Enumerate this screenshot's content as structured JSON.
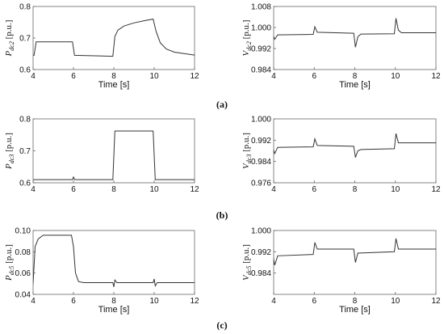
{
  "chart_data": [
    {
      "type": "line",
      "panel": "a-left",
      "ylabel_sym": "P",
      "ylabel_sub": "dc2",
      "ylabel_unit": " [p.u.]",
      "xlabel": "Time [s]",
      "xlim": [
        4,
        12
      ],
      "ylim": [
        0.6,
        0.8
      ],
      "xticks": [
        "4",
        "6",
        "8",
        "10",
        "12"
      ],
      "yticks": [
        "0.6",
        "0.7",
        "0.8"
      ],
      "series": [
        {
          "points": [
            [
              3.8,
              0.645
            ],
            [
              4.05,
              0.645
            ],
            [
              4.15,
              0.688
            ],
            [
              5.95,
              0.688
            ],
            [
              6.05,
              0.645
            ],
            [
              7.95,
              0.642
            ],
            [
              8.05,
              0.705
            ],
            [
              8.2,
              0.725
            ],
            [
              8.5,
              0.738
            ],
            [
              9.0,
              0.748
            ],
            [
              9.5,
              0.755
            ],
            [
              9.95,
              0.76
            ],
            [
              10.1,
              0.72
            ],
            [
              10.3,
              0.685
            ],
            [
              10.6,
              0.665
            ],
            [
              11.0,
              0.655
            ],
            [
              12,
              0.646
            ]
          ]
        }
      ]
    },
    {
      "type": "line",
      "panel": "a-right",
      "ylabel_sym": "V",
      "ylabel_sub": "dc2",
      "ylabel_unit": " [p.u.]",
      "xlabel": "Time [s]",
      "xlim": [
        4,
        12
      ],
      "ylim": [
        0.984,
        1.008
      ],
      "xticks": [
        "4",
        "6",
        "8",
        "10",
        "12"
      ],
      "yticks": [
        "0.984",
        "0.992",
        "1.000",
        "1.008"
      ],
      "series": [
        {
          "points": [
            [
              3.8,
              0.9975
            ],
            [
              3.95,
              0.9975
            ],
            [
              4.05,
              0.9955
            ],
            [
              4.2,
              0.9972
            ],
            [
              5.95,
              0.9974
            ],
            [
              6.03,
              1.0003
            ],
            [
              6.15,
              0.9982
            ],
            [
              7.95,
              0.9978
            ],
            [
              8.03,
              0.9925
            ],
            [
              8.15,
              0.9965
            ],
            [
              8.3,
              0.9975
            ],
            [
              9.95,
              0.9976
            ],
            [
              10.03,
              1.0035
            ],
            [
              10.15,
              0.999
            ],
            [
              10.3,
              0.998
            ],
            [
              12,
              0.998
            ]
          ]
        }
      ]
    },
    {
      "type": "line",
      "panel": "b-left",
      "ylabel_sym": "P",
      "ylabel_sub": "dc3",
      "ylabel_unit": " [p.u.]",
      "xlabel": "",
      "xlim": [
        4,
        12
      ],
      "ylim": [
        0.6,
        0.8
      ],
      "xticks": [
        "4",
        "6",
        "8",
        "10",
        "12"
      ],
      "yticks": [
        "0.6",
        "0.7",
        "0.8"
      ],
      "series": [
        {
          "points": [
            [
              3.8,
              0.61
            ],
            [
              5.95,
              0.61
            ],
            [
              6.0,
              0.618
            ],
            [
              6.05,
              0.61
            ],
            [
              7.95,
              0.61
            ],
            [
              8.05,
              0.762
            ],
            [
              9.95,
              0.762
            ],
            [
              10.05,
              0.61
            ],
            [
              12,
              0.61
            ]
          ]
        }
      ]
    },
    {
      "type": "line",
      "panel": "b-right",
      "ylabel_sym": "V",
      "ylabel_sub": "dc3",
      "ylabel_unit": " [p.u.]",
      "xlabel": "",
      "xlim": [
        4,
        12
      ],
      "ylim": [
        0.976,
        1.0
      ],
      "xticks": [
        "4",
        "6",
        "8",
        "10",
        "12"
      ],
      "yticks": [
        "0.976",
        "0.984",
        "0.992",
        "1.000"
      ],
      "series": [
        {
          "points": [
            [
              3.8,
              0.9895
            ],
            [
              3.95,
              0.9895
            ],
            [
              4.05,
              0.987
            ],
            [
              4.2,
              0.9893
            ],
            [
              5.95,
              0.9895
            ],
            [
              6.03,
              0.9925
            ],
            [
              6.15,
              0.99
            ],
            [
              7.95,
              0.9897
            ],
            [
              8.03,
              0.9855
            ],
            [
              8.15,
              0.988
            ],
            [
              8.3,
              0.9885
            ],
            [
              9.95,
              0.9888
            ],
            [
              10.03,
              0.9945
            ],
            [
              10.15,
              0.991
            ],
            [
              12,
              0.991
            ]
          ]
        }
      ]
    },
    {
      "type": "line",
      "panel": "c-left",
      "ylabel_sym": "P",
      "ylabel_sub": "dc5",
      "ylabel_unit": " [p.u.]",
      "xlabel": "Time [s]",
      "xlim": [
        4,
        12
      ],
      "ylim": [
        0.04,
        0.1
      ],
      "xticks": [
        "4",
        "6",
        "8",
        "10",
        "12"
      ],
      "yticks": [
        "0.04",
        "0.06",
        "0.08",
        "0.10"
      ],
      "series": [
        {
          "points": [
            [
              3.8,
              0.05
            ],
            [
              4.0,
              0.05
            ],
            [
              4.1,
              0.085
            ],
            [
              4.25,
              0.092
            ],
            [
              4.5,
              0.0955
            ],
            [
              5.9,
              0.0955
            ],
            [
              6.0,
              0.085
            ],
            [
              6.1,
              0.06
            ],
            [
              6.25,
              0.052
            ],
            [
              6.5,
              0.051
            ],
            [
              7.95,
              0.051
            ],
            [
              8.0,
              0.047
            ],
            [
              8.05,
              0.0535
            ],
            [
              8.15,
              0.051
            ],
            [
              9.95,
              0.051
            ],
            [
              10.0,
              0.0545
            ],
            [
              10.05,
              0.048
            ],
            [
              10.15,
              0.051
            ],
            [
              12,
              0.051
            ]
          ]
        }
      ]
    },
    {
      "type": "line",
      "panel": "c-right",
      "ylabel_sym": "V",
      "ylabel_sub": "dc5",
      "ylabel_unit": " [p.u.]",
      "xlabel": "Time [s]",
      "xlim": [
        4,
        12
      ],
      "ylim": [
        0.976,
        1.0
      ],
      "xticks": [
        "4",
        "6",
        "8",
        "10",
        "12"
      ],
      "yticks": [
        "0.984",
        "0.992",
        "1.000"
      ],
      "series": [
        {
          "points": [
            [
              3.8,
              0.9915
            ],
            [
              3.95,
              0.9915
            ],
            [
              4.05,
              0.987
            ],
            [
              4.2,
              0.9905
            ],
            [
              5.95,
              0.991
            ],
            [
              6.03,
              0.9955
            ],
            [
              6.15,
              0.993
            ],
            [
              7.95,
              0.993
            ],
            [
              8.03,
              0.988
            ],
            [
              8.15,
              0.9915
            ],
            [
              9.95,
              0.992
            ],
            [
              10.03,
              0.997
            ],
            [
              10.15,
              0.993
            ],
            [
              12,
              0.993
            ]
          ]
        }
      ]
    }
  ],
  "captions": [
    "(a)",
    "(b)",
    "(c)"
  ],
  "style": {
    "line_color": "#333333",
    "axis_color": "#666666"
  }
}
